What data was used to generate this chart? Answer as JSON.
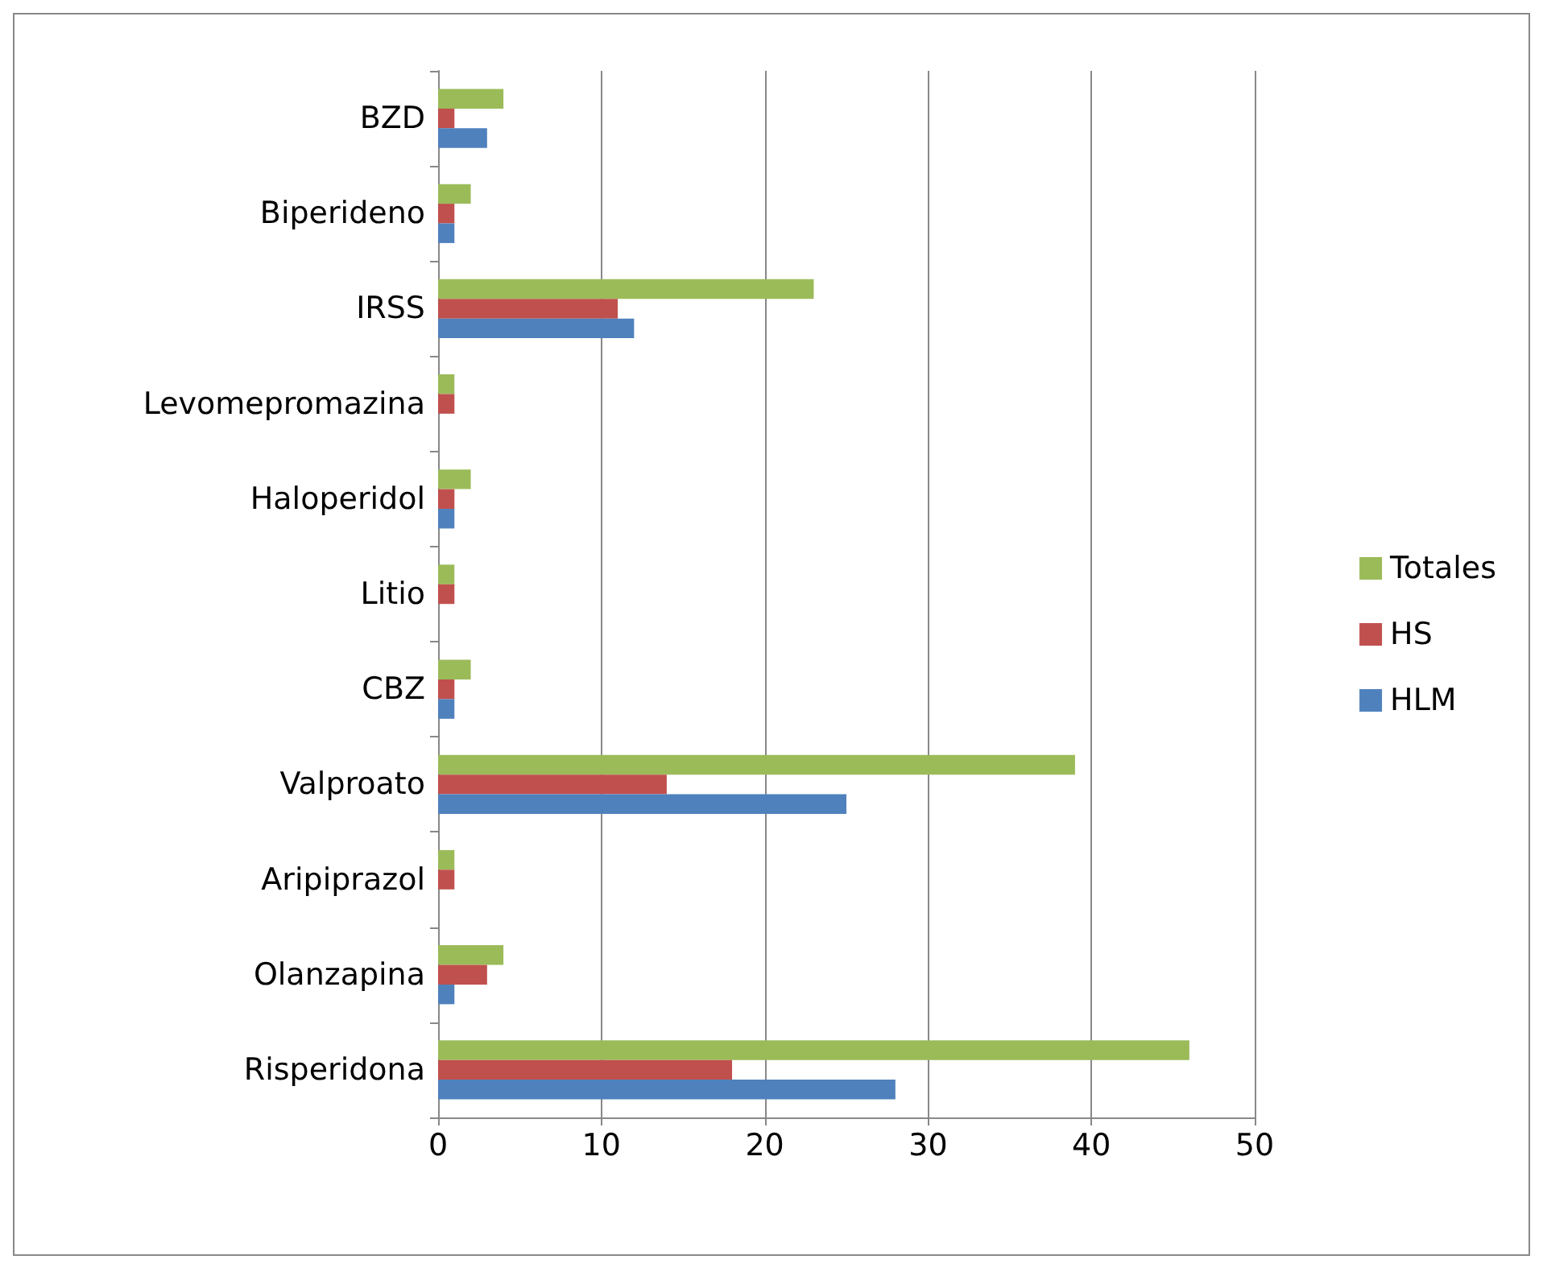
{
  "chart_data": {
    "type": "bar",
    "orientation": "horizontal",
    "categories": [
      "BZD",
      "Biperideno",
      "IRSS",
      "Levomepromazina",
      "Haloperidol",
      "Litio",
      "CBZ",
      "Valproato",
      "Aripiprazol",
      "Olanzapina",
      "Risperidona"
    ],
    "series": [
      {
        "name": "Totales",
        "color": "#9bbb59",
        "values": [
          4,
          2,
          23,
          1,
          2,
          1,
          2,
          39,
          1,
          4,
          46
        ]
      },
      {
        "name": "HS",
        "color": "#c0504d",
        "values": [
          1,
          1,
          11,
          1,
          1,
          1,
          1,
          14,
          1,
          3,
          18
        ]
      },
      {
        "name": "HLM",
        "color": "#4f81bd",
        "values": [
          3,
          1,
          12,
          0,
          1,
          0,
          1,
          25,
          0,
          1,
          28
        ]
      }
    ],
    "xlim": [
      0,
      50
    ],
    "xticks": [
      0,
      10,
      20,
      30,
      40,
      50
    ],
    "grid": "x",
    "legend": "right"
  }
}
